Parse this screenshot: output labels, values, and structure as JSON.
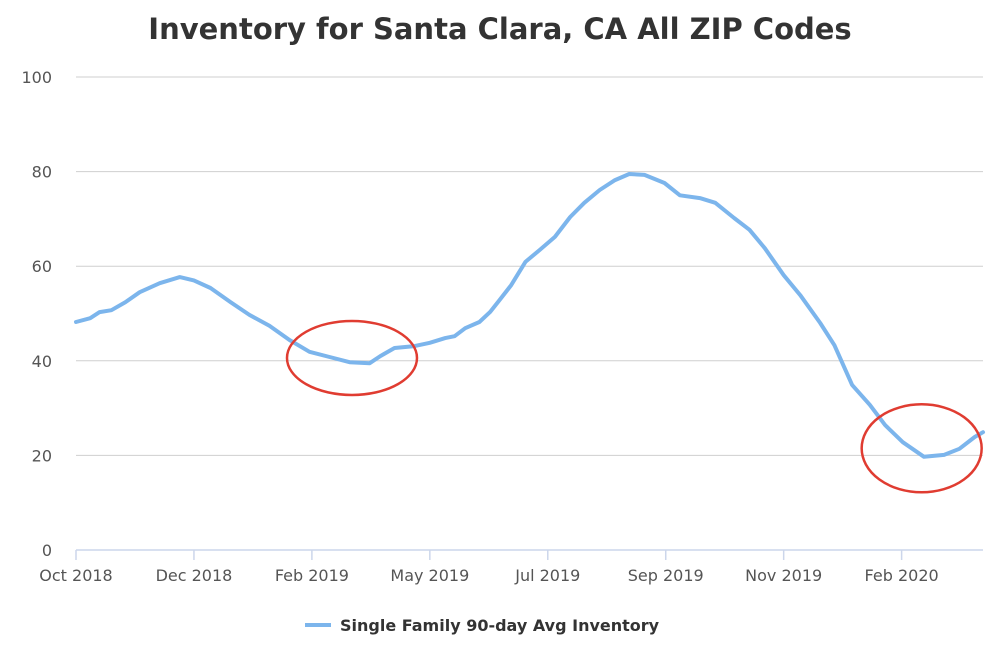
{
  "chart_data": {
    "type": "line",
    "title": "Inventory for Santa Clara, CA All ZIP Codes",
    "xlabel": "",
    "ylabel": "",
    "ylim": [
      0,
      100
    ],
    "yticks": [
      0,
      20,
      40,
      60,
      80,
      100
    ],
    "xticks": [
      "Oct 2018",
      "Dec 2018",
      "Feb 2019",
      "May 2019",
      "Jul 2019",
      "Sep 2019",
      "Nov 2019",
      "Feb 2020"
    ],
    "xlim_tick_index": [
      0,
      7.69
    ],
    "grid": true,
    "legend_position": "bottom-center",
    "series": [
      {
        "name": "Single Family 90-day Avg Inventory",
        "color": "#7cb5ec",
        "x_tick_index": [
          0,
          0.12,
          0.2,
          0.3,
          0.42,
          0.54,
          0.71,
          0.88,
          1.0,
          1.14,
          1.31,
          1.47,
          1.64,
          1.81,
          1.98,
          2.15,
          2.32,
          2.49,
          2.58,
          2.7,
          2.87,
          3.0,
          3.13,
          3.21,
          3.3,
          3.42,
          3.51,
          3.59,
          3.69,
          3.81,
          3.93,
          4.06,
          4.19,
          4.31,
          4.44,
          4.57,
          4.69,
          4.82,
          4.99,
          5.12,
          5.29,
          5.42,
          5.58,
          5.71,
          5.84,
          6.0,
          6.14,
          6.31,
          6.43,
          6.58,
          6.73,
          6.86,
          7.01,
          7.19,
          7.36,
          7.49,
          7.62,
          7.69
        ],
        "values": [
          48.2,
          49,
          50.3,
          50.7,
          52.4,
          54.5,
          56.4,
          57.7,
          57,
          55.4,
          52.4,
          49.7,
          47.4,
          44.4,
          41.9,
          40.8,
          39.7,
          39.5,
          41,
          42.7,
          43.1,
          43.8,
          44.8,
          45.2,
          46.9,
          48.2,
          50.3,
          52.8,
          56,
          60.9,
          63.4,
          66.2,
          70.4,
          73.4,
          76.1,
          78.2,
          79.5,
          79.3,
          77.6,
          75,
          74.4,
          73.4,
          70.2,
          67.7,
          63.8,
          58.1,
          53.9,
          48,
          43.3,
          34.9,
          30.7,
          26.4,
          22.8,
          19.7,
          20.1,
          21.4,
          23.9,
          24.9
        ]
      }
    ],
    "annotations": [
      {
        "type": "ellipse",
        "color": "#e03c31",
        "center_tick_index": 2.34,
        "center_value": 40.6
      },
      {
        "type": "ellipse",
        "color": "#e03c31",
        "center_tick_index": 7.17,
        "center_value": 21.5
      }
    ]
  }
}
